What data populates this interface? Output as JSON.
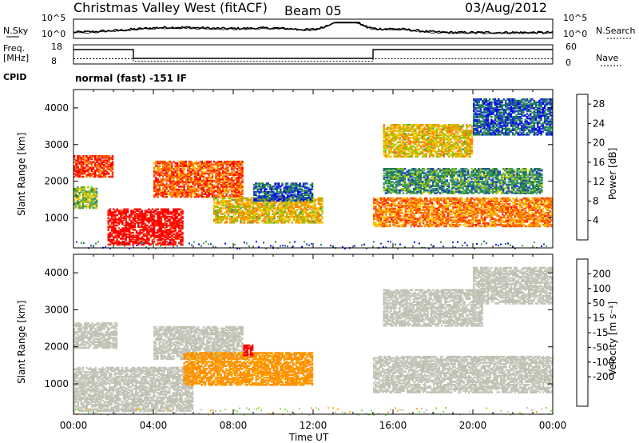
{
  "header": {
    "station": "Christmas Valley West (fitACF)",
    "beam": "Beam 05",
    "date": "03/Aug/2012"
  },
  "top_panels": {
    "nsky_label": "N.Sky",
    "nsky_ticks": [
      "10^5",
      "10^0"
    ],
    "nsearch_label": "N.Search",
    "nsearch_ticks": [
      "10^5",
      "10^0"
    ],
    "freq_label": "Freq.",
    "freq_unit": "[MHz]",
    "freq_ticks": [
      "18",
      "8"
    ],
    "nave_label": "Nave",
    "nave_ticks": [
      "60",
      "0"
    ],
    "cpid_label": "CPID",
    "cpid_text": "normal (fast) -151 IF"
  },
  "colors": {
    "power_scale": [
      "#0000ff",
      "#2040c0",
      "#1f7f4f",
      "#40a060",
      "#a0c000",
      "#ffc000",
      "#ff8000",
      "#ff4000",
      "#ff0000"
    ],
    "velocity_scale": [
      "#ff0000",
      "#ff5000",
      "#ff9000",
      "#ffb000",
      "#c0c0b0",
      "#c8c8c0",
      "#80e040",
      "#20a030",
      "#207050",
      "#2040c0"
    ]
  },
  "chart_data": [
    {
      "type": "heatmap",
      "panel": "power",
      "ylabel": "Slant Range [km]",
      "ylim": [
        180,
        4500
      ],
      "y_ticks": [
        "4000",
        "3000",
        "2000",
        "1000"
      ],
      "xlim": [
        0,
        24
      ],
      "colorbar": {
        "label": "Power [dB]",
        "ticks": [
          "28",
          "24",
          "20",
          "16",
          "12",
          "8",
          "4"
        ],
        "range": [
          0,
          30
        ]
      },
      "bands": [
        {
          "t0": 0.0,
          "t1": 2.0,
          "r0": 2150,
          "r1": 2750,
          "value": 26
        },
        {
          "t0": 0.0,
          "t1": 1.2,
          "r0": 1300,
          "r1": 1900,
          "value": 14
        },
        {
          "t0": 1.7,
          "t1": 5.5,
          "r0": 300,
          "r1": 1300,
          "value": 30
        },
        {
          "t0": 4.0,
          "t1": 8.5,
          "r0": 1600,
          "r1": 2600,
          "value": 24
        },
        {
          "t0": 7.0,
          "t1": 12.5,
          "r0": 900,
          "r1": 1600,
          "value": 18
        },
        {
          "t0": 9.0,
          "t1": 12.0,
          "r0": 1500,
          "r1": 2000,
          "value": 6
        },
        {
          "t0": 15.0,
          "t1": 24.0,
          "r0": 800,
          "r1": 1600,
          "value": 22
        },
        {
          "t0": 15.5,
          "t1": 23.5,
          "r0": 1700,
          "r1": 2400,
          "value": 10
        },
        {
          "t0": 15.5,
          "t1": 20.0,
          "r0": 2700,
          "r1": 3600,
          "value": 18
        },
        {
          "t0": 20.0,
          "t1": 24.0,
          "r0": 3300,
          "r1": 4300,
          "value": 6
        }
      ]
    },
    {
      "type": "heatmap",
      "panel": "velocity",
      "ylabel": "Slant Range [km]",
      "ylim": [
        180,
        4500
      ],
      "y_ticks": [
        "4000",
        "3000",
        "2000",
        "1000"
      ],
      "xlim": [
        0,
        24
      ],
      "xlabel": "Time UT",
      "x_ticks": [
        "00:00",
        "04:00",
        "08:00",
        "12:00",
        "16:00",
        "20:00",
        "00:00"
      ],
      "colorbar": {
        "label": "Velocity [m s⁻¹]",
        "ticks": [
          "200",
          "100",
          "50",
          "15",
          "-15",
          "-50",
          "-100",
          "-200"
        ],
        "range": [
          -250,
          250
        ]
      },
      "bands": [
        {
          "t0": 0.0,
          "t1": 2.2,
          "r0": 2000,
          "r1": 2700,
          "value": 0
        },
        {
          "t0": 0.0,
          "t1": 6.0,
          "r0": 300,
          "r1": 1500,
          "value": 0
        },
        {
          "t0": 4.0,
          "t1": 8.5,
          "r0": 1700,
          "r1": 2600,
          "value": 0
        },
        {
          "t0": 5.5,
          "t1": 12.0,
          "r0": 1000,
          "r1": 1900,
          "value": -60
        },
        {
          "t0": 8.5,
          "t1": 9.0,
          "r0": 1800,
          "r1": 2100,
          "value": -220
        },
        {
          "t0": 15.0,
          "t1": 24.0,
          "r0": 800,
          "r1": 1800,
          "value": 0
        },
        {
          "t0": 15.5,
          "t1": 20.5,
          "r0": 2600,
          "r1": 3600,
          "value": 0
        },
        {
          "t0": 20.0,
          "t1": 24.0,
          "r0": 3200,
          "r1": 4200,
          "value": 0
        }
      ]
    }
  ]
}
